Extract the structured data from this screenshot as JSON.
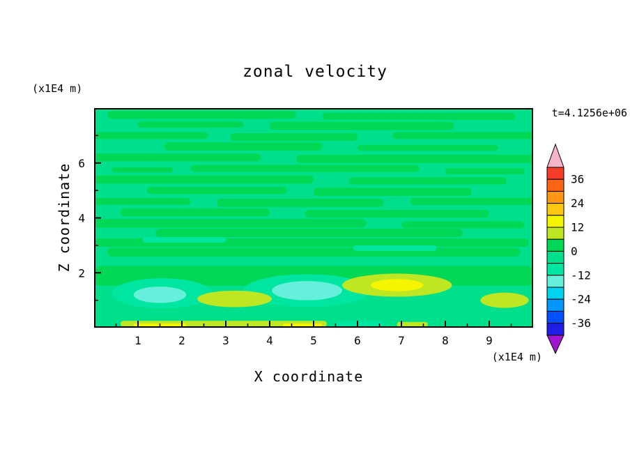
{
  "chart_data": {
    "type": "heatmap",
    "subtype": "filled_contour",
    "title": "zonal velocity",
    "time_label": "t=4.1256e+06",
    "xlabel": "X coordinate",
    "ylabel": "Z coordinate",
    "x_units": "(x1E4 m)",
    "y_units": "(x1E4 m)",
    "xlim": [
      0,
      10
    ],
    "ylim": [
      0,
      8
    ],
    "x_ticks": [
      1,
      2,
      3,
      4,
      5,
      6,
      7,
      8,
      9
    ],
    "x_minor_ticks": [
      0.5,
      1.5,
      2.5,
      3.5,
      4.5,
      5.5,
      6.5,
      7.5,
      8.5,
      9.5
    ],
    "y_ticks": [
      2,
      4,
      6
    ],
    "y_minor_ticks": [
      1,
      3,
      5,
      7
    ],
    "contour_interval": 6,
    "contour_levels": [
      -42,
      -36,
      -30,
      -24,
      -18,
      -12,
      -6,
      0,
      6,
      12,
      18,
      24,
      30,
      36,
      42
    ],
    "colorbar_labels": [
      36,
      24,
      12,
      0,
      -12,
      -24,
      -36
    ],
    "legend_position": "right",
    "palette": {
      "colors": [
        "#1E1EE6",
        "#0050FF",
        "#0096FF",
        "#00D2F0",
        "#66F0DC",
        "#00E6A0",
        "#00E08C",
        "#00D755",
        "#BEE622",
        "#F5F500",
        "#FFC814",
        "#FF9614",
        "#FF6414",
        "#F53C28"
      ],
      "over_color": "#F5B4C8",
      "under_color": "#A014D2"
    },
    "background_value": -3,
    "field_features": {
      "streaks": [
        [
          0.3,
          4.6,
          7.75,
          0.28,
          3
        ],
        [
          5.2,
          9.6,
          7.7,
          0.25,
          3
        ],
        [
          1.0,
          3.4,
          7.4,
          0.22,
          3
        ],
        [
          4.0,
          8.2,
          7.35,
          0.3,
          3
        ],
        [
          0.0,
          2.6,
          7.0,
          0.25,
          3
        ],
        [
          3.1,
          6.0,
          6.95,
          0.28,
          3
        ],
        [
          6.8,
          10.0,
          7.0,
          0.25,
          3
        ],
        [
          1.6,
          5.2,
          6.6,
          0.3,
          3
        ],
        [
          6.0,
          9.2,
          6.55,
          0.22,
          3
        ],
        [
          0.0,
          3.8,
          6.2,
          0.28,
          3
        ],
        [
          4.6,
          10.0,
          6.15,
          0.3,
          3
        ],
        [
          2.2,
          7.4,
          5.8,
          0.26,
          3
        ],
        [
          0.4,
          1.8,
          5.75,
          0.2,
          3
        ],
        [
          8.0,
          9.8,
          5.7,
          0.22,
          3
        ],
        [
          0.0,
          5.0,
          5.4,
          0.3,
          3
        ],
        [
          5.8,
          9.4,
          5.35,
          0.26,
          3
        ],
        [
          1.2,
          4.4,
          5.0,
          0.26,
          3
        ],
        [
          5.0,
          8.6,
          4.95,
          0.3,
          3
        ],
        [
          0.0,
          2.2,
          4.6,
          0.24,
          3
        ],
        [
          2.8,
          6.6,
          4.55,
          0.3,
          3
        ],
        [
          7.2,
          10.0,
          4.6,
          0.26,
          3
        ],
        [
          0.6,
          4.0,
          4.2,
          0.3,
          3
        ],
        [
          4.8,
          9.0,
          4.15,
          0.28,
          3
        ],
        [
          0.0,
          6.2,
          3.8,
          0.32,
          3
        ],
        [
          7.0,
          9.8,
          3.75,
          0.26,
          3
        ],
        [
          1.4,
          8.4,
          3.45,
          0.3,
          3
        ],
        [
          0.0,
          9.9,
          3.1,
          0.3,
          3
        ],
        [
          0.3,
          9.7,
          2.75,
          0.32,
          3
        ],
        [
          0.0,
          10.0,
          2.0,
          0.5,
          3
        ],
        [
          0.0,
          10.0,
          1.72,
          0.38,
          3
        ],
        [
          1.1,
          3.0,
          3.2,
          0.2,
          -9
        ],
        [
          5.9,
          7.8,
          2.9,
          0.2,
          -9
        ],
        [
          5.5,
          6.6,
          0.14,
          0.2,
          -9
        ],
        [
          0.6,
          5.3,
          0.14,
          0.22,
          9
        ],
        [
          6.9,
          7.6,
          0.12,
          0.18,
          9
        ],
        [
          0.9,
          2.1,
          0.08,
          0.13,
          15
        ],
        [
          4.3,
          5.2,
          0.08,
          0.13,
          15
        ]
      ],
      "blobs": [
        [
          1.55,
          1.25,
          1.15,
          0.55,
          -9
        ],
        [
          4.85,
          1.35,
          1.45,
          0.6,
          -9
        ],
        [
          1.5,
          1.2,
          0.6,
          0.3,
          -15
        ],
        [
          4.85,
          1.35,
          0.8,
          0.35,
          -15
        ],
        [
          3.2,
          1.05,
          0.85,
          0.3,
          9
        ],
        [
          6.9,
          1.55,
          1.25,
          0.42,
          9
        ],
        [
          9.35,
          1.0,
          0.55,
          0.28,
          9
        ],
        [
          6.9,
          1.55,
          0.6,
          0.22,
          15
        ]
      ]
    }
  }
}
